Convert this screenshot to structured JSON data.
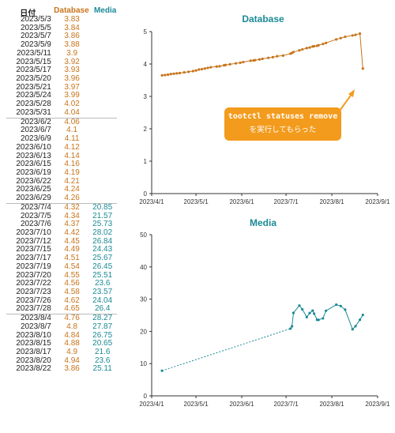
{
  "table": {
    "headers": {
      "date": "日付",
      "database": "Database",
      "media": "Media"
    },
    "colors": {
      "database": "#c8741a",
      "media": "#1b8a96"
    },
    "rows": [
      {
        "date": "2023/5/3",
        "db": "3.83",
        "media": ""
      },
      {
        "date": "2023/5/5",
        "db": "3.84",
        "media": ""
      },
      {
        "date": "2023/5/7",
        "db": "3.86",
        "media": ""
      },
      {
        "date": "2023/5/9",
        "db": "3.88",
        "media": ""
      },
      {
        "date": "2023/5/11",
        "db": "3.9",
        "media": ""
      },
      {
        "date": "2023/5/15",
        "db": "3.92",
        "media": ""
      },
      {
        "date": "2023/5/17",
        "db": "3.93",
        "media": ""
      },
      {
        "date": "2023/5/20",
        "db": "3.96",
        "media": ""
      },
      {
        "date": "2023/5/21",
        "db": "3.97",
        "media": ""
      },
      {
        "date": "2023/5/24",
        "db": "3.99",
        "media": ""
      },
      {
        "date": "2023/5/28",
        "db": "4.02",
        "media": ""
      },
      {
        "date": "2023/5/31",
        "db": "4.04",
        "media": ""
      },
      {
        "date": "2023/6/2",
        "db": "4.06",
        "media": ""
      },
      {
        "date": "2023/6/7",
        "db": "4.1",
        "media": ""
      },
      {
        "date": "2023/6/9",
        "db": "4.11",
        "media": ""
      },
      {
        "date": "2023/6/10",
        "db": "4.12",
        "media": ""
      },
      {
        "date": "2023/6/13",
        "db": "4.14",
        "media": ""
      },
      {
        "date": "2023/6/15",
        "db": "4.16",
        "media": ""
      },
      {
        "date": "2023/6/19",
        "db": "4.19",
        "media": ""
      },
      {
        "date": "2023/6/22",
        "db": "4.21",
        "media": ""
      },
      {
        "date": "2023/6/25",
        "db": "4.24",
        "media": ""
      },
      {
        "date": "2023/6/29",
        "db": "4.26",
        "media": ""
      },
      {
        "date": "2023/7/4",
        "db": "4.32",
        "media": "20.85"
      },
      {
        "date": "2023/7/5",
        "db": "4.34",
        "media": "21.57"
      },
      {
        "date": "2023/7/6",
        "db": "4.37",
        "media": "25.73"
      },
      {
        "date": "2023/7/10",
        "db": "4.42",
        "media": "28.02"
      },
      {
        "date": "2023/7/12",
        "db": "4.45",
        "media": "26.84"
      },
      {
        "date": "2023/7/15",
        "db": "4.49",
        "media": "24.43"
      },
      {
        "date": "2023/7/17",
        "db": "4.51",
        "media": "25.67"
      },
      {
        "date": "2023/7/19",
        "db": "4.54",
        "media": "26.45"
      },
      {
        "date": "2023/7/20",
        "db": "4.55",
        "media": "25.51"
      },
      {
        "date": "2023/7/22",
        "db": "4.56",
        "media": "23.6"
      },
      {
        "date": "2023/7/23",
        "db": "4.58",
        "media": "23.57"
      },
      {
        "date": "2023/7/26",
        "db": "4.62",
        "media": "24.04"
      },
      {
        "date": "2023/7/28",
        "db": "4.65",
        "media": "26.4"
      },
      {
        "date": "2023/8/4",
        "db": "4.76",
        "media": "28.27"
      },
      {
        "date": "2023/8/7",
        "db": "4.8",
        "media": "27.87"
      },
      {
        "date": "2023/8/10",
        "db": "4.84",
        "media": "26.75"
      },
      {
        "date": "2023/8/15",
        "db": "4.88",
        "media": "20.65"
      },
      {
        "date": "2023/8/17",
        "db": "4.9",
        "media": "21.6"
      },
      {
        "date": "2023/8/20",
        "db": "4.94",
        "media": "23.6"
      },
      {
        "date": "2023/8/22",
        "db": "3.86",
        "media": "25.11"
      }
    ]
  },
  "annotation": {
    "line1": "tootctl statuses remove",
    "line2": "を実行してもらった"
  },
  "chart_data": [
    {
      "type": "line",
      "title": "Database",
      "color": "#c8741a",
      "xlabel": "",
      "ylabel": "",
      "xlim": [
        "2023/4/1",
        "2023/9/1"
      ],
      "ylim": [
        0,
        5
      ],
      "yticks": [
        "0",
        "1",
        "2",
        "3",
        "4",
        "5"
      ],
      "xticks": [
        "2023/4/1",
        "2023/5/1",
        "2023/6/1",
        "2023/7/1",
        "2023/8/1",
        "2023/9/1"
      ],
      "grid": false,
      "series": [
        {
          "points": [
            [
              "2023-04-08",
              3.65
            ],
            [
              "2023-04-10",
              3.66
            ],
            [
              "2023-04-12",
              3.67
            ],
            [
              "2023-04-14",
              3.69
            ],
            [
              "2023-04-16",
              3.7
            ],
            [
              "2023-04-18",
              3.71
            ],
            [
              "2023-04-20",
              3.72
            ],
            [
              "2023-04-23",
              3.74
            ],
            [
              "2023-04-26",
              3.76
            ],
            [
              "2023-04-29",
              3.78
            ],
            [
              "2023-05-01",
              3.8
            ],
            [
              "2023-05-03",
              3.83
            ],
            [
              "2023-05-05",
              3.84
            ],
            [
              "2023-05-07",
              3.86
            ],
            [
              "2023-05-09",
              3.88
            ],
            [
              "2023-05-11",
              3.9
            ],
            [
              "2023-05-15",
              3.92
            ],
            [
              "2023-05-17",
              3.93
            ],
            [
              "2023-05-20",
              3.96
            ],
            [
              "2023-05-21",
              3.97
            ],
            [
              "2023-05-24",
              3.99
            ],
            [
              "2023-05-28",
              4.02
            ],
            [
              "2023-05-31",
              4.04
            ],
            [
              "2023-06-02",
              4.06
            ],
            [
              "2023-06-07",
              4.1
            ],
            [
              "2023-06-09",
              4.11
            ],
            [
              "2023-06-10",
              4.12
            ],
            [
              "2023-06-13",
              4.14
            ],
            [
              "2023-06-15",
              4.16
            ],
            [
              "2023-06-19",
              4.19
            ],
            [
              "2023-06-22",
              4.21
            ],
            [
              "2023-06-25",
              4.24
            ],
            [
              "2023-06-29",
              4.26
            ],
            [
              "2023-07-04",
              4.32
            ],
            [
              "2023-07-05",
              4.34
            ],
            [
              "2023-07-06",
              4.37
            ],
            [
              "2023-07-10",
              4.42
            ],
            [
              "2023-07-12",
              4.45
            ],
            [
              "2023-07-15",
              4.49
            ],
            [
              "2023-07-17",
              4.51
            ],
            [
              "2023-07-19",
              4.54
            ],
            [
              "2023-07-20",
              4.55
            ],
            [
              "2023-07-22",
              4.56
            ],
            [
              "2023-07-23",
              4.58
            ],
            [
              "2023-07-26",
              4.62
            ],
            [
              "2023-07-28",
              4.65
            ],
            [
              "2023-08-04",
              4.76
            ],
            [
              "2023-08-07",
              4.8
            ],
            [
              "2023-08-10",
              4.84
            ],
            [
              "2023-08-15",
              4.88
            ],
            [
              "2023-08-17",
              4.9
            ],
            [
              "2023-08-20",
              4.94
            ],
            [
              "2023-08-22",
              3.86
            ]
          ]
        }
      ]
    },
    {
      "type": "line",
      "title": "Media",
      "color": "#1b8a96",
      "xlabel": "",
      "ylabel": "",
      "xlim": [
        "2023/4/1",
        "2023/9/1"
      ],
      "ylim": [
        0,
        50
      ],
      "yticks": [
        "0",
        "10",
        "20",
        "30",
        "40",
        "50"
      ],
      "xticks": [
        "2023/4/1",
        "2023/5/1",
        "2023/6/1",
        "2023/7/1",
        "2023/8/1",
        "2023/9/1"
      ],
      "grid": false,
      "series": [
        {
          "points": [
            [
              "2023-04-08",
              7.8
            ],
            [
              "2023-07-04",
              20.85
            ],
            [
              "2023-07-05",
              21.57
            ],
            [
              "2023-07-06",
              25.73
            ],
            [
              "2023-07-10",
              28.02
            ],
            [
              "2023-07-12",
              26.84
            ],
            [
              "2023-07-15",
              24.43
            ],
            [
              "2023-07-17",
              25.67
            ],
            [
              "2023-07-19",
              26.45
            ],
            [
              "2023-07-20",
              25.51
            ],
            [
              "2023-07-22",
              23.6
            ],
            [
              "2023-07-23",
              23.57
            ],
            [
              "2023-07-26",
              24.04
            ],
            [
              "2023-07-28",
              26.4
            ],
            [
              "2023-08-04",
              28.27
            ],
            [
              "2023-08-07",
              27.87
            ],
            [
              "2023-08-10",
              26.75
            ],
            [
              "2023-08-15",
              20.65
            ],
            [
              "2023-08-17",
              21.6
            ],
            [
              "2023-08-20",
              23.6
            ],
            [
              "2023-08-22",
              25.11
            ]
          ]
        }
      ]
    }
  ]
}
